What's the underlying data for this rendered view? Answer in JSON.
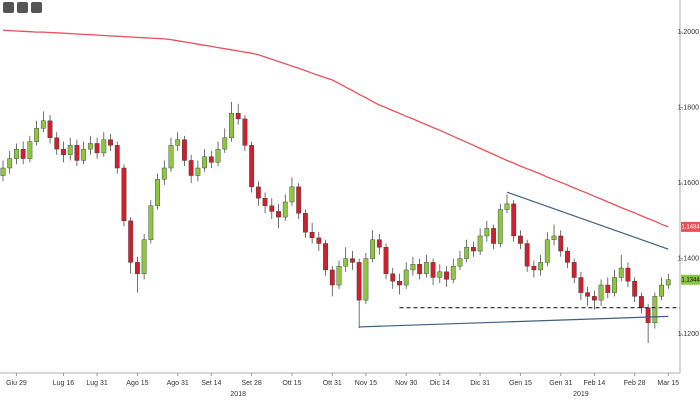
{
  "chart_data": {
    "type": "candlestick",
    "categories": [
      null,
      null,
      "Giu 29",
      null,
      null,
      null,
      null,
      null,
      null,
      "Lug 16",
      null,
      null,
      null,
      null,
      "Lug 31",
      null,
      null,
      null,
      null,
      null,
      "Ago 15",
      null,
      null,
      null,
      null,
      null,
      "Ago 31",
      null,
      null,
      null,
      null,
      "Set 14",
      null,
      null,
      null,
      null,
      null,
      "Set 28",
      null,
      null,
      null,
      null,
      null,
      "Ott 15",
      null,
      null,
      null,
      null,
      null,
      "Ott 31",
      null,
      null,
      null,
      null,
      "Nov 15",
      null,
      null,
      null,
      null,
      null,
      "Nov 30",
      null,
      null,
      null,
      null,
      "Dic 14",
      null,
      null,
      null,
      null,
      null,
      "Dic 31",
      null,
      null,
      null,
      null,
      null,
      "Gen 15",
      null,
      null,
      null,
      null,
      null,
      "Gen 31",
      null,
      null,
      null,
      null,
      "Feb 14",
      null,
      null,
      null,
      null,
      null,
      "Feb 28",
      null,
      null,
      null,
      null,
      "Mar 15"
    ],
    "year_labels": [
      {
        "value": 35,
        "label": "2018"
      },
      {
        "value": 86,
        "label": "2019"
      }
    ],
    "open": [
      1.162,
      1.164,
      1.1665,
      1.169,
      1.1665,
      1.171,
      1.1745,
      1.1765,
      1.172,
      1.169,
      1.1675,
      1.17,
      1.166,
      1.169,
      1.1705,
      1.168,
      1.1715,
      1.17,
      1.164,
      1.15,
      1.139,
      1.136,
      1.145,
      1.154,
      1.161,
      1.164,
      1.17,
      1.1715,
      1.166,
      1.162,
      1.164,
      1.167,
      1.1655,
      1.169,
      1.172,
      1.1785,
      1.177,
      1.17,
      1.159,
      1.156,
      1.154,
      1.1525,
      1.151,
      1.155,
      1.159,
      1.152,
      1.147,
      1.1455,
      1.144,
      1.137,
      1.133,
      1.138,
      1.14,
      1.139,
      1.129,
      1.14,
      1.145,
      1.143,
      1.136,
      1.134,
      1.133,
      1.137,
      1.1385,
      1.136,
      1.139,
      1.135,
      1.1365,
      1.1345,
      1.138,
      1.14,
      1.143,
      1.142,
      1.146,
      1.148,
      1.144,
      1.153,
      1.1545,
      1.146,
      1.144,
      1.138,
      1.137,
      1.139,
      1.145,
      1.146,
      1.142,
      1.139,
      1.135,
      1.131,
      1.13,
      1.129,
      1.133,
      1.131,
      1.135,
      1.1375,
      1.134,
      1.13,
      1.127,
      1.123,
      1.13,
      1.133
    ],
    "high": [
      1.166,
      1.1685,
      1.1705,
      1.171,
      1.1725,
      1.1765,
      1.179,
      1.178,
      1.1735,
      1.171,
      1.172,
      1.1715,
      1.171,
      1.1725,
      1.172,
      1.1735,
      1.173,
      1.171,
      1.165,
      1.151,
      1.1405,
      1.1465,
      1.1555,
      1.1625,
      1.166,
      1.172,
      1.1735,
      1.1725,
      1.1675,
      1.166,
      1.169,
      1.1685,
      1.171,
      1.1745,
      1.1815,
      1.181,
      1.178,
      1.171,
      1.1605,
      1.1575,
      1.156,
      1.1545,
      1.157,
      1.1615,
      1.16,
      1.153,
      1.1495,
      1.147,
      1.145,
      1.138,
      1.1395,
      1.143,
      1.142,
      1.14,
      1.1415,
      1.1475,
      1.1465,
      1.144,
      1.1375,
      1.136,
      1.139,
      1.1405,
      1.14,
      1.141,
      1.14,
      1.1385,
      1.138,
      1.14,
      1.142,
      1.145,
      1.1445,
      1.148,
      1.15,
      1.149,
      1.1545,
      1.157,
      1.1555,
      1.1475,
      1.145,
      1.1395,
      1.141,
      1.147,
      1.149,
      1.1475,
      1.143,
      1.14,
      1.1365,
      1.1325,
      1.1315,
      1.1345,
      1.135,
      1.137,
      1.141,
      1.139,
      1.135,
      1.131,
      1.128,
      1.131,
      1.135,
      1.136
    ],
    "low": [
      1.1605,
      1.1625,
      1.165,
      1.165,
      1.1655,
      1.17,
      1.1735,
      1.1705,
      1.1675,
      1.1655,
      1.166,
      1.1645,
      1.165,
      1.1675,
      1.1665,
      1.167,
      1.1685,
      1.1625,
      1.1485,
      1.136,
      1.131,
      1.1345,
      1.144,
      1.153,
      1.1595,
      1.163,
      1.1685,
      1.1645,
      1.16,
      1.1605,
      1.163,
      1.164,
      1.1645,
      1.168,
      1.171,
      1.1755,
      1.1685,
      1.1575,
      1.154,
      1.152,
      1.1505,
      1.148,
      1.15,
      1.154,
      1.1505,
      1.1455,
      1.144,
      1.142,
      1.1355,
      1.13,
      1.132,
      1.1365,
      1.137,
      1.1216,
      1.128,
      1.139,
      1.141,
      1.1345,
      1.132,
      1.1305,
      1.132,
      1.1355,
      1.1345,
      1.135,
      1.133,
      1.1335,
      1.1325,
      1.1335,
      1.137,
      1.139,
      1.1405,
      1.141,
      1.1445,
      1.1425,
      1.143,
      1.152,
      1.1445,
      1.1425,
      1.1365,
      1.135,
      1.1355,
      1.138,
      1.1435,
      1.1405,
      1.1375,
      1.1335,
      1.129,
      1.1275,
      1.1265,
      1.1275,
      1.1295,
      1.13,
      1.134,
      1.1325,
      1.1285,
      1.1255,
      1.1176,
      1.1215,
      1.129,
      1.132
    ],
    "close": [
      1.164,
      1.1665,
      1.169,
      1.1665,
      1.171,
      1.1745,
      1.1765,
      1.172,
      1.169,
      1.1675,
      1.17,
      1.166,
      1.169,
      1.1705,
      1.168,
      1.1715,
      1.17,
      1.164,
      1.15,
      1.139,
      1.136,
      1.145,
      1.154,
      1.161,
      1.164,
      1.17,
      1.1715,
      1.166,
      1.162,
      1.164,
      1.167,
      1.1655,
      1.169,
      1.172,
      1.1785,
      1.177,
      1.17,
      1.159,
      1.156,
      1.154,
      1.1525,
      1.151,
      1.155,
      1.159,
      1.152,
      1.147,
      1.1455,
      1.144,
      1.137,
      1.133,
      1.138,
      1.14,
      1.139,
      1.129,
      1.14,
      1.145,
      1.143,
      1.136,
      1.134,
      1.133,
      1.137,
      1.1385,
      1.136,
      1.139,
      1.135,
      1.1365,
      1.1345,
      1.138,
      1.14,
      1.143,
      1.142,
      1.146,
      1.148,
      1.144,
      1.153,
      1.1545,
      1.146,
      1.144,
      1.138,
      1.137,
      1.139,
      1.145,
      1.146,
      1.142,
      1.139,
      1.135,
      1.131,
      1.13,
      1.129,
      1.133,
      1.131,
      1.135,
      1.1375,
      1.134,
      1.13,
      1.127,
      1.123,
      1.13,
      1.133,
      1.1344
    ],
    "up_color": "#8dc63f",
    "down_color": "#d0202e",
    "close_label": "1.1344",
    "ma": {
      "color": "#e8505b",
      "last_label": "1.1484",
      "values": [
        1.2005,
        1.2004,
        1.2003,
        1.2002,
        1.2001,
        1.2,
        1.2,
        1.1999,
        1.1998,
        1.1997,
        1.1996,
        1.1995,
        1.1994,
        1.1993,
        1.1992,
        1.1991,
        1.199,
        1.1989,
        1.1988,
        1.1987,
        1.1986,
        1.1985,
        1.1984,
        1.1983,
        1.1982,
        1.198,
        1.1977,
        1.1974,
        1.1971,
        1.1968,
        1.1965,
        1.1962,
        1.1959,
        1.1956,
        1.1953,
        1.195,
        1.1947,
        1.1944,
        1.194,
        1.1934,
        1.1928,
        1.1922,
        1.1916,
        1.191,
        1.1904,
        1.1898,
        1.1891,
        1.1885,
        1.1879,
        1.1873,
        1.1864,
        1.1854,
        1.1845,
        1.1835,
        1.1826,
        1.1816,
        1.1807,
        1.18,
        1.1792,
        1.1785,
        1.1777,
        1.177,
        1.1762,
        1.1755,
        1.1747,
        1.174,
        1.1732,
        1.1724,
        1.1716,
        1.1708,
        1.17,
        1.1692,
        1.1684,
        1.1676,
        1.1668,
        1.166,
        1.1653,
        1.1645,
        1.1638,
        1.1631,
        1.1624,
        1.1616,
        1.1609,
        1.1602,
        1.1595,
        1.1587,
        1.158,
        1.1573,
        1.1565,
        1.1558,
        1.155,
        1.1543,
        1.1535,
        1.1528,
        1.1521,
        1.1513,
        1.1506,
        1.1499,
        1.1491,
        1.1484
      ]
    },
    "trendlines": [
      {
        "x": [
          75,
          99
        ],
        "y": [
          1.1576,
          1.1425
        ],
        "color": "#3f5f7f",
        "dashed": false
      },
      {
        "x": [
          53,
          99
        ],
        "y": [
          1.1219,
          1.1247
        ],
        "color": "#3f5f7f",
        "dashed": false
      },
      {
        "x": [
          59,
          103
        ],
        "y": [
          1.127,
          1.127
        ],
        "color": "#222222",
        "dashed": true
      }
    ],
    "ylim": [
      1.1097,
      1.2085
    ],
    "yticks": [
      {
        "value": 1.12,
        "label": "1.1200"
      },
      {
        "value": 1.14,
        "label": "1.1400"
      },
      {
        "value": 1.16,
        "label": "1.1600"
      },
      {
        "value": 1.18,
        "label": "1.1800"
      },
      {
        "value": 1.2,
        "label": "1.2000"
      }
    ]
  }
}
